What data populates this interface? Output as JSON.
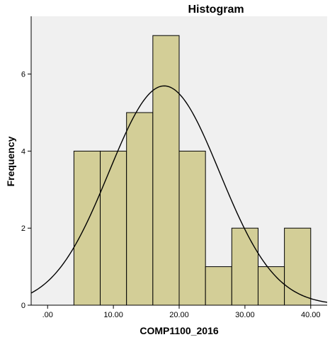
{
  "chart_data": {
    "type": "bar",
    "title": "Histogram",
    "xlabel": "COMP1100_2016",
    "ylabel": "Frequency",
    "xlim": [
      -2.5,
      42.5
    ],
    "ylim": [
      0,
      7.5
    ],
    "x_ticks": [
      0,
      10,
      20,
      30,
      40
    ],
    "x_tick_labels": [
      ".00",
      "10.00",
      "20.00",
      "30.00",
      "40.00"
    ],
    "y_ticks": [
      0,
      2,
      4,
      6
    ],
    "y_tick_labels": [
      "0",
      "2",
      "4",
      "6"
    ],
    "bins": [
      {
        "start": 4,
        "end": 8,
        "count": 4
      },
      {
        "start": 8,
        "end": 12,
        "count": 4
      },
      {
        "start": 12,
        "end": 16,
        "count": 5
      },
      {
        "start": 16,
        "end": 20,
        "count": 7
      },
      {
        "start": 20,
        "end": 24,
        "count": 4
      },
      {
        "start": 24,
        "end": 28,
        "count": 1
      },
      {
        "start": 28,
        "end": 32,
        "count": 2
      },
      {
        "start": 32,
        "end": 36,
        "count": 1
      },
      {
        "start": 36,
        "end": 40,
        "count": 2
      }
    ],
    "normal_curve": {
      "mean": 17.73,
      "sd": 8.41,
      "n": 30,
      "bin_width": 4
    },
    "grid": false,
    "colors": {
      "bar_fill": "#d3ce97",
      "bar_stroke": "#000000",
      "plot_background": "#f0f0f0",
      "curve": "#000000"
    }
  }
}
